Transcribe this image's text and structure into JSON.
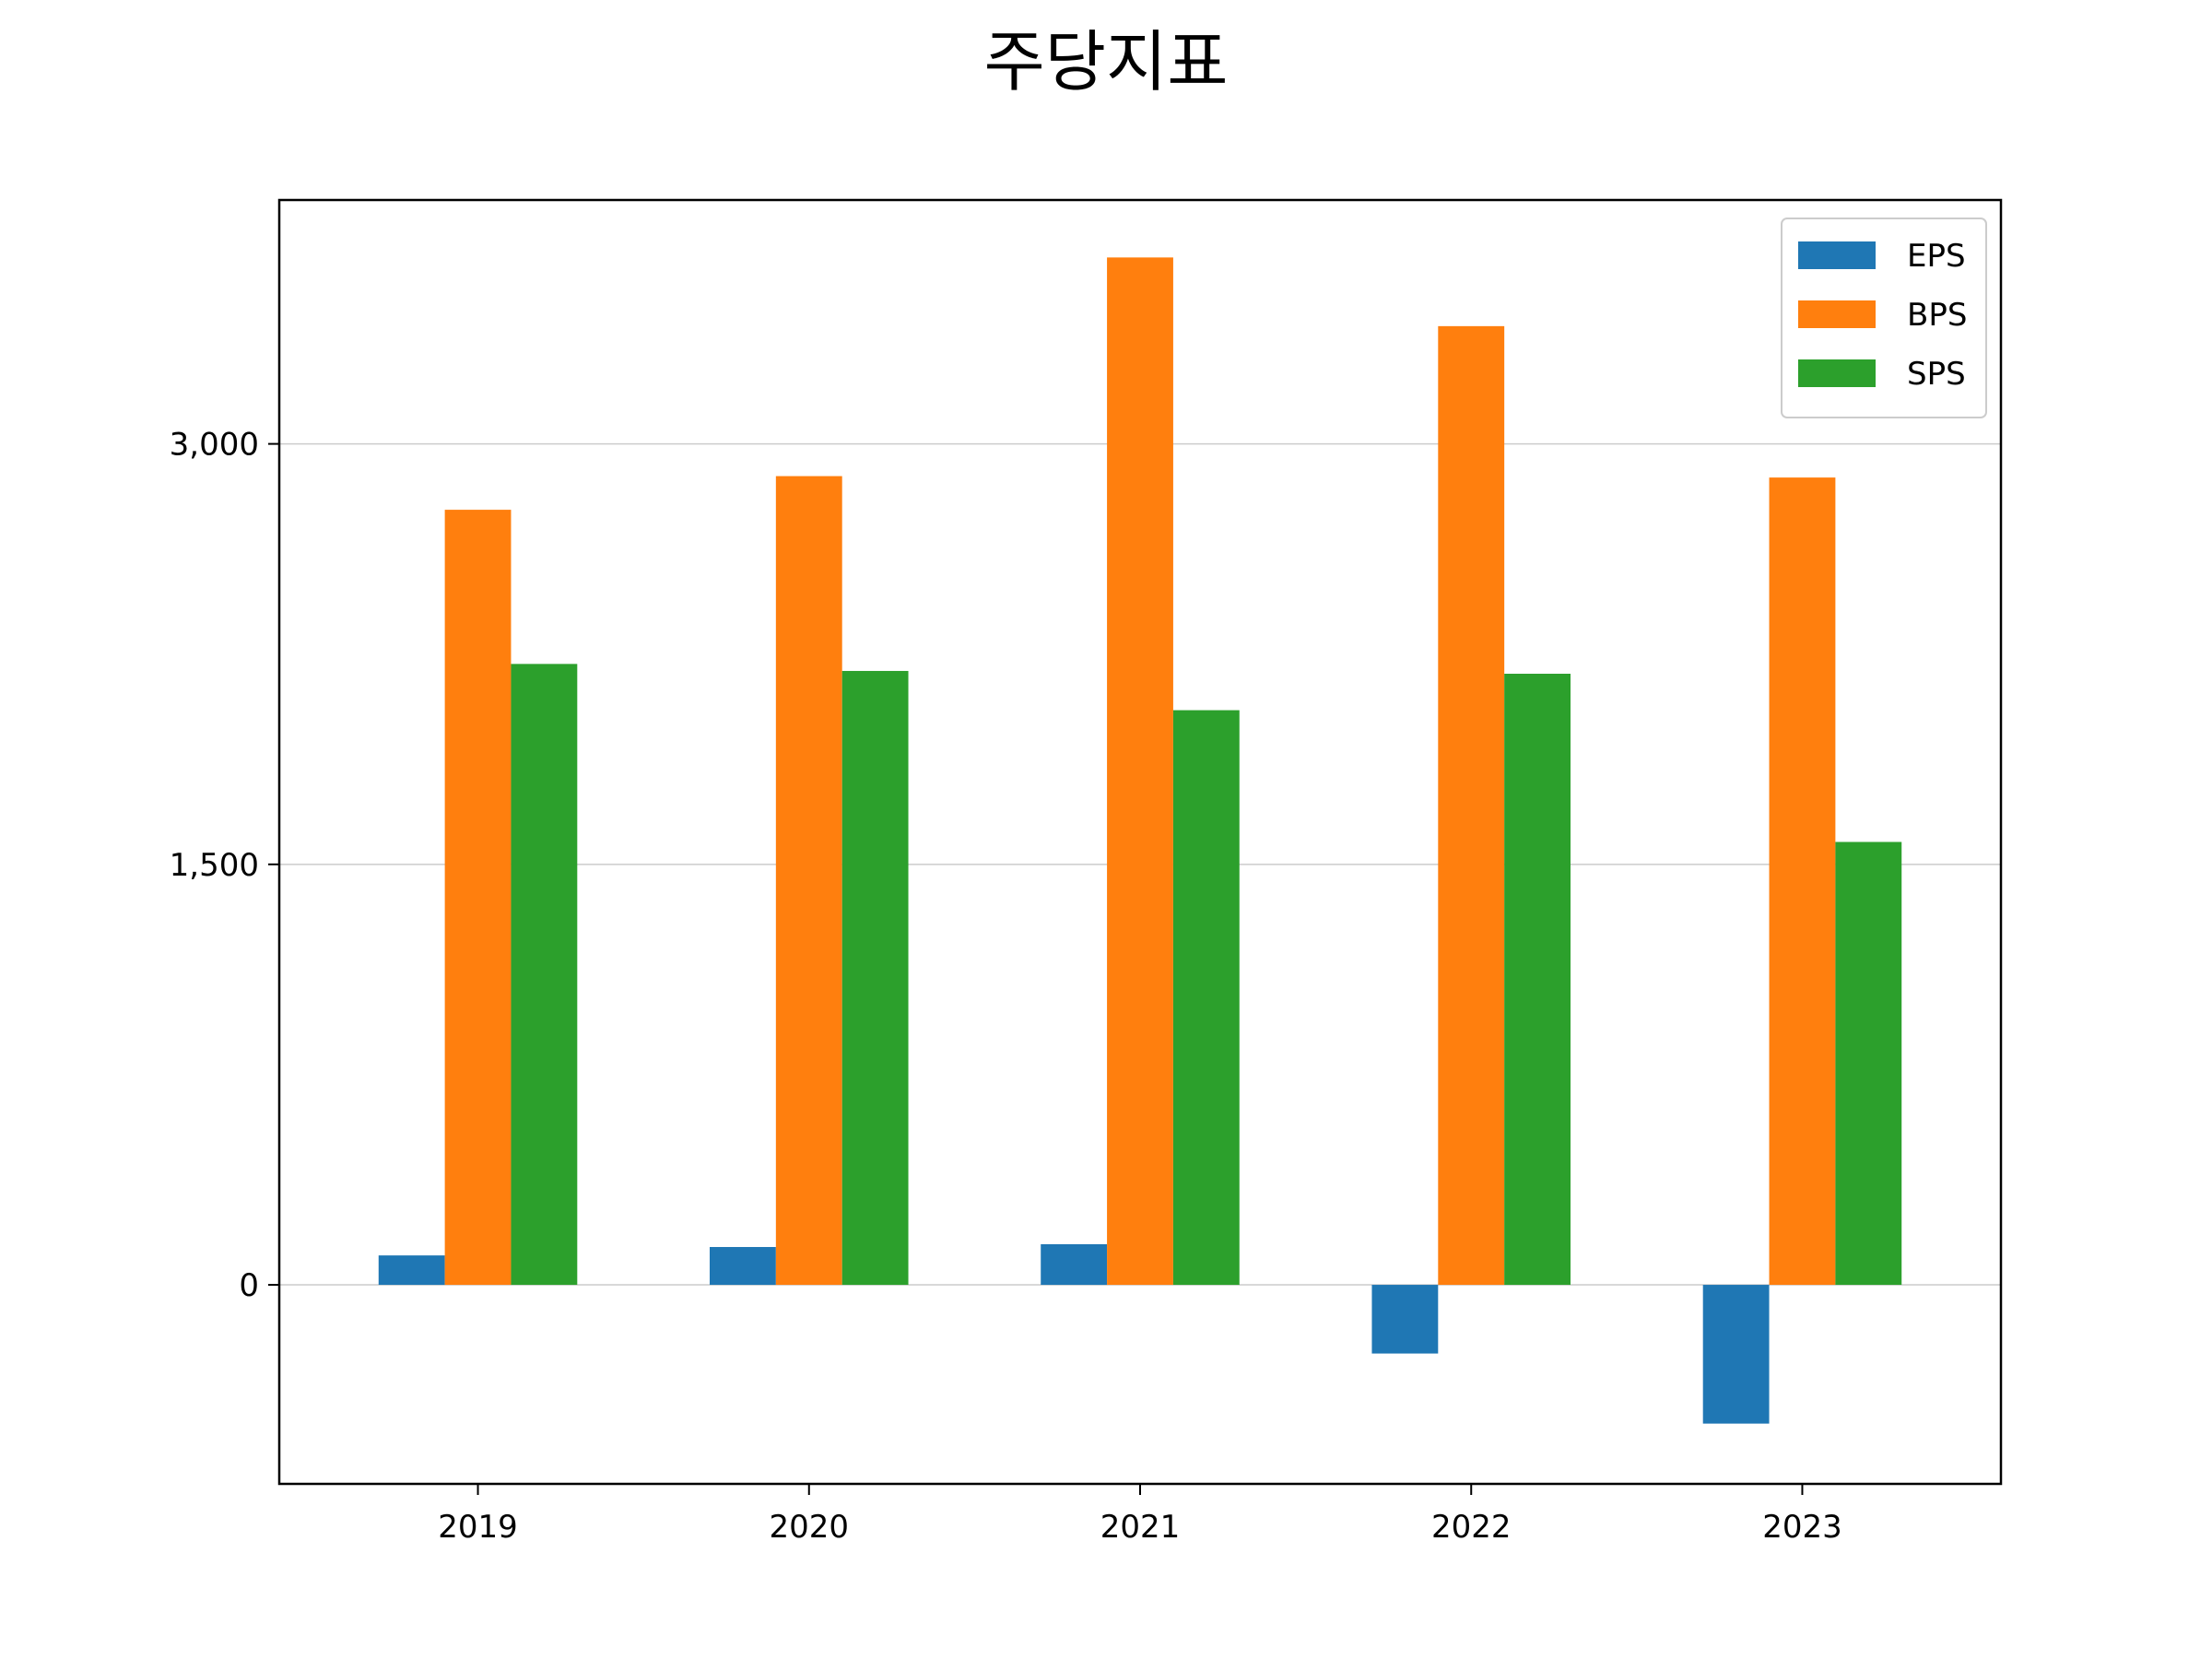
{
  "chart_data": {
    "type": "bar",
    "title": "주당지표",
    "xlabel": "",
    "ylabel": "",
    "categories": [
      "2019",
      "2020",
      "2021",
      "2022",
      "2023"
    ],
    "series": [
      {
        "name": "EPS",
        "color": "#1f77b4",
        "values": [
          105,
          135,
          145,
          -245,
          -495
        ]
      },
      {
        "name": "BPS",
        "color": "#ff7f0e",
        "values": [
          2765,
          2885,
          3665,
          3420,
          2880
        ]
      },
      {
        "name": "SPS",
        "color": "#2ca02c",
        "values": [
          2215,
          2190,
          2050,
          2180,
          1580
        ]
      }
    ],
    "ylim": [
      -710,
      3870
    ],
    "yticks": [
      0,
      1500,
      3000
    ],
    "ytick_labels": [
      "0",
      "1,500",
      "3,000"
    ],
    "grid": "horizontal",
    "legend_position": "top-right"
  }
}
